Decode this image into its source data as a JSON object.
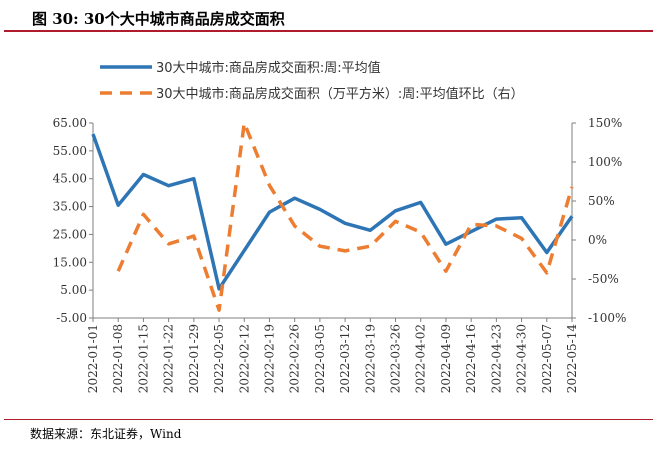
{
  "figure": {
    "title": "图  30:  30个大中城市商品房成交面积",
    "source": "数据来源：东北证券，Wind"
  },
  "chart_data": {
    "type": "line",
    "x": [
      "2022-01-01",
      "2022-01-08",
      "2022-01-15",
      "2022-01-22",
      "2022-01-29",
      "2022-02-05",
      "2022-02-12",
      "2022-02-19",
      "2022-02-26",
      "2022-03-05",
      "2022-03-12",
      "2022-03-19",
      "2022-03-26",
      "2022-04-02",
      "2022-04-09",
      "2022-04-16",
      "2022-04-23",
      "2022-04-30",
      "2022-05-07",
      "2022-05-14"
    ],
    "x_tick_labels": [
      "2022-01-01",
      "2022-01-08",
      "2022-01-15",
      "2022-01-22",
      "2022-01-29",
      "2022-02-05",
      "2022-02-12",
      "2022-02-19",
      "2022-02-26",
      "2022-03-05",
      "2022-03-12",
      "2022-03-19",
      "2022-03-26",
      "2022-04-02",
      "2022-04-09",
      "2022-04-16",
      "2022-04-23",
      "2022-04-30",
      "2022-05-07",
      "2022-05-14"
    ],
    "series": [
      {
        "name": "30大中城市:商品房成交面积:周:平均值",
        "axis": "left",
        "style": "solid",
        "color": "#2e75b6",
        "values": [
          61.0,
          35.5,
          46.5,
          42.5,
          45.0,
          5.5,
          null,
          33.0,
          38.0,
          34.0,
          29.0,
          26.5,
          33.5,
          36.5,
          21.5,
          26.0,
          30.5,
          31.0,
          18.5,
          31.5
        ]
      },
      {
        "name": "30大中城市:商品房成交面积（万平方米）:周:平均值环比（右）",
        "axis": "right",
        "style": "dashed",
        "color": "#ed7d31",
        "values": [
          null,
          -40,
          33,
          -5,
          5,
          -90,
          150,
          70,
          18,
          -8,
          -14,
          -8,
          24,
          10,
          -40,
          20,
          18,
          2,
          -42,
          68
        ]
      }
    ],
    "y_left": {
      "ticks": [
        "65.00",
        "55.00",
        "45.00",
        "35.00",
        "25.00",
        "15.00",
        "5.00",
        "-5.00"
      ],
      "min": -5,
      "max": 65
    },
    "y_right": {
      "ticks": [
        "150%",
        "100%",
        "50%",
        "0%",
        "-50%",
        "-100%"
      ],
      "min": -100,
      "max": 150
    },
    "legend_position": "top-left",
    "grid": false
  }
}
